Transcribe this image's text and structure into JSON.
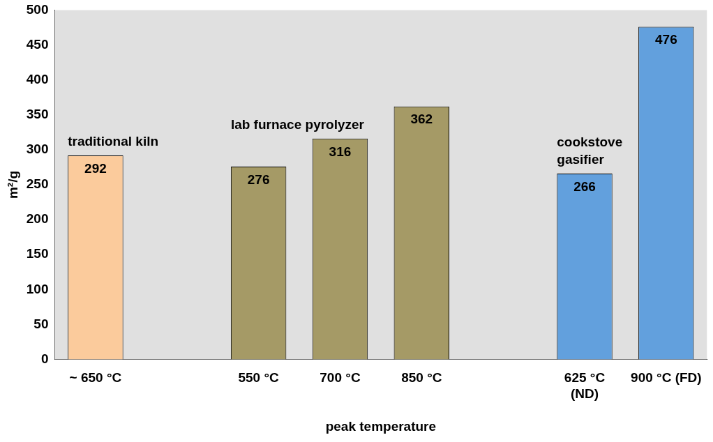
{
  "chart_data": {
    "type": "bar",
    "xlabel": "peak temperature",
    "ylabel": "m²/g",
    "categories": [
      "~ 650 °C",
      null,
      "550 °C",
      "700 °C",
      "850 °C",
      null,
      "625 °C\n(ND)",
      "900 °C (FD)"
    ],
    "values": [
      292,
      null,
      276,
      316,
      362,
      null,
      266,
      476
    ],
    "colors": [
      "#fbcb9c",
      "#a59a66",
      "#a59a66",
      "#a59a66",
      "#a59a66",
      "#62a0dd",
      "#62a0dd",
      "#62a0dd"
    ],
    "data_labels": true,
    "ylim": [
      0,
      500
    ],
    "yticks": [
      0,
      50,
      100,
      150,
      200,
      250,
      300,
      350,
      400,
      450,
      500
    ],
    "grid": false,
    "legend": false,
    "annotations": [
      "traditional kiln",
      "lab furnace pyrolyzer",
      "cookstove\ngasifier"
    ]
  }
}
